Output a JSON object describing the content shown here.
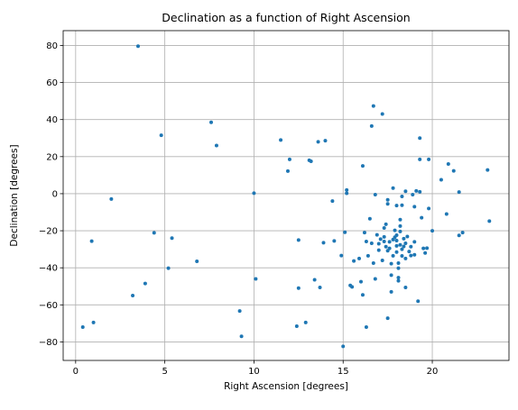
{
  "chart_data": {
    "type": "scatter",
    "title": "Declination as a function of Right Ascension",
    "xlabel": "Right Ascension [degrees]",
    "ylabel": "Declination [degrees]",
    "xlim": [
      -0.7,
      24.3
    ],
    "ylim": [
      -90,
      88
    ],
    "xticks": [
      0,
      5,
      10,
      15,
      20
    ],
    "yticks": [
      80,
      60,
      40,
      20,
      0,
      -20,
      -40,
      -60,
      -80
    ],
    "xtick_labels": [
      "0",
      "5",
      "10",
      "15",
      "20"
    ],
    "ytick_labels": [
      "80",
      "60",
      "40",
      "20",
      "0",
      "−20",
      "−40",
      "−60",
      "−80"
    ],
    "grid": true,
    "marker_color": "#1f77b4",
    "points": [
      [
        0.4,
        -72
      ],
      [
        0.9,
        -25.6
      ],
      [
        1.0,
        -69.5
      ],
      [
        2.0,
        -2.9
      ],
      [
        3.2,
        -55
      ],
      [
        3.5,
        79.6
      ],
      [
        3.9,
        -48.5
      ],
      [
        4.4,
        -21.1
      ],
      [
        4.8,
        31.5
      ],
      [
        5.2,
        -40.2
      ],
      [
        5.4,
        -24
      ],
      [
        6.8,
        -36.5
      ],
      [
        7.6,
        38.5
      ],
      [
        7.9,
        26
      ],
      [
        9.2,
        -63.3
      ],
      [
        9.3,
        -77
      ],
      [
        10.0,
        0.3
      ],
      [
        10.1,
        -46
      ],
      [
        11.5,
        29
      ],
      [
        11.9,
        12.2
      ],
      [
        12.0,
        18.5
      ],
      [
        12.4,
        -71.5
      ],
      [
        12.5,
        -51
      ],
      [
        12.5,
        -25
      ],
      [
        12.9,
        -69.5
      ],
      [
        13.1,
        18
      ],
      [
        13.2,
        17.5
      ],
      [
        13.4,
        -46.5
      ],
      [
        13.6,
        28
      ],
      [
        13.7,
        -50.6
      ],
      [
        13.9,
        -26.5
      ],
      [
        14.0,
        28.6
      ],
      [
        14.4,
        -4
      ],
      [
        14.5,
        -25.5
      ],
      [
        14.9,
        -33.4
      ],
      [
        15.0,
        -82.4
      ],
      [
        15.1,
        -20.8
      ],
      [
        15.2,
        0.2
      ],
      [
        15.2,
        2
      ],
      [
        15.4,
        -49.5
      ],
      [
        15.5,
        -50.3
      ],
      [
        15.6,
        -36.3
      ],
      [
        15.9,
        -35
      ],
      [
        16.0,
        -47.5
      ],
      [
        16.1,
        -54.6
      ],
      [
        16.1,
        15
      ],
      [
        16.2,
        -21
      ],
      [
        16.3,
        -25.8
      ],
      [
        16.3,
        -72
      ],
      [
        16.4,
        -33.5
      ],
      [
        16.5,
        -13.5
      ],
      [
        16.6,
        -26.8
      ],
      [
        16.6,
        36.5
      ],
      [
        16.7,
        47.3
      ],
      [
        16.7,
        -37.5
      ],
      [
        16.8,
        -0.5
      ],
      [
        16.8,
        -46
      ],
      [
        16.9,
        -22.2
      ],
      [
        17.0,
        -27
      ],
      [
        17.0,
        -30.5
      ],
      [
        17.1,
        -24.5
      ],
      [
        17.2,
        43
      ],
      [
        17.2,
        -36
      ],
      [
        17.3,
        -18.5
      ],
      [
        17.3,
        -23.3
      ],
      [
        17.3,
        -25.8
      ],
      [
        17.4,
        -28.6
      ],
      [
        17.4,
        -16.5
      ],
      [
        17.5,
        -5.5
      ],
      [
        17.5,
        -3.3
      ],
      [
        17.5,
        -67.2
      ],
      [
        17.5,
        -30.8
      ],
      [
        17.6,
        -26
      ],
      [
        17.6,
        -29.5
      ],
      [
        17.7,
        -44
      ],
      [
        17.7,
        -53
      ],
      [
        17.7,
        -37.8
      ],
      [
        17.8,
        3
      ],
      [
        17.8,
        -33.5
      ],
      [
        17.8,
        -24.8
      ],
      [
        17.9,
        -19.8
      ],
      [
        17.9,
        -23.5
      ],
      [
        18.0,
        -31.5
      ],
      [
        18.0,
        -28.2
      ],
      [
        18.0,
        -25.3
      ],
      [
        18.0,
        -22.4
      ],
      [
        18.0,
        -6.4
      ],
      [
        18.1,
        -40.2
      ],
      [
        18.1,
        -45.3
      ],
      [
        18.1,
        -37.5
      ],
      [
        18.1,
        -47
      ],
      [
        18.2,
        -27.6
      ],
      [
        18.2,
        -20.4
      ],
      [
        18.2,
        -14
      ],
      [
        18.2,
        -17.5
      ],
      [
        18.3,
        -30
      ],
      [
        18.3,
        -33.6
      ],
      [
        18.3,
        -6.2
      ],
      [
        18.3,
        -1.5
      ],
      [
        18.4,
        -24.3
      ],
      [
        18.4,
        -28.5
      ],
      [
        18.5,
        -35
      ],
      [
        18.5,
        -26.8
      ],
      [
        18.5,
        -50.6
      ],
      [
        18.5,
        1.3
      ],
      [
        18.6,
        -23.1
      ],
      [
        18.7,
        -31.2
      ],
      [
        18.8,
        -33.4
      ],
      [
        18.8,
        -28.6
      ],
      [
        18.9,
        -0.5
      ],
      [
        19.0,
        -7
      ],
      [
        19.0,
        -26
      ],
      [
        19.0,
        -33
      ],
      [
        19.1,
        1.5
      ],
      [
        19.2,
        -58
      ],
      [
        19.3,
        30
      ],
      [
        19.3,
        18.5
      ],
      [
        19.3,
        1
      ],
      [
        19.4,
        -13
      ],
      [
        19.5,
        -29.5
      ],
      [
        19.6,
        -32
      ],
      [
        19.7,
        -29.4
      ],
      [
        19.8,
        18.5
      ],
      [
        19.8,
        -8
      ],
      [
        20.0,
        -20
      ],
      [
        20.5,
        7.5
      ],
      [
        20.8,
        -11
      ],
      [
        20.9,
        16
      ],
      [
        21.2,
        12.3
      ],
      [
        21.5,
        -22.5
      ],
      [
        21.5,
        0.9
      ],
      [
        21.7,
        -21
      ],
      [
        23.1,
        12.8
      ],
      [
        23.2,
        -14.8
      ]
    ]
  }
}
